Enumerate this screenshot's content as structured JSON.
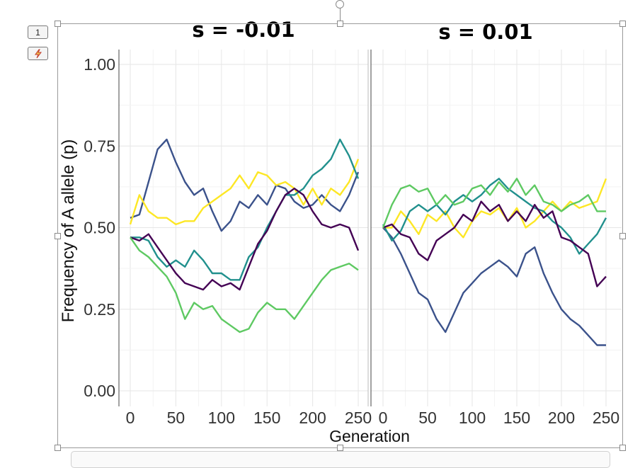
{
  "toolbar": {
    "slide_number": "1",
    "quick_action_icon": "lightning-icon"
  },
  "chart_data": [
    {
      "type": "line",
      "title": "s = -0.01",
      "xlabel": "Generation",
      "ylabel": "Frequency of A allele (p)",
      "xlim": [
        0,
        250
      ],
      "ylim": [
        0,
        1
      ],
      "x_ticks": [
        "0",
        "50",
        "100",
        "150",
        "200",
        "250"
      ],
      "y_ticks": [
        "0.00",
        "0.25",
        "0.50",
        "0.75",
        "1.00"
      ],
      "grid": true,
      "legend": "none",
      "series": [
        {
          "color": "#3b528b",
          "x": [
            0,
            10,
            20,
            30,
            40,
            50,
            60,
            70,
            80,
            90,
            100,
            110,
            120,
            130,
            140,
            150,
            160,
            170,
            180,
            190,
            200,
            210,
            220,
            230,
            240,
            250
          ],
          "y": [
            0.53,
            0.54,
            0.64,
            0.74,
            0.77,
            0.7,
            0.64,
            0.6,
            0.62,
            0.55,
            0.49,
            0.52,
            0.58,
            0.56,
            0.6,
            0.57,
            0.63,
            0.62,
            0.58,
            0.56,
            0.57,
            0.6,
            0.57,
            0.55,
            0.6,
            0.67
          ]
        },
        {
          "color": "#fde725",
          "x": [
            0,
            10,
            20,
            30,
            40,
            50,
            60,
            70,
            80,
            90,
            100,
            110,
            120,
            130,
            140,
            150,
            160,
            170,
            180,
            190,
            200,
            210,
            220,
            230,
            240,
            250
          ],
          "y": [
            0.51,
            0.6,
            0.55,
            0.53,
            0.53,
            0.51,
            0.52,
            0.52,
            0.56,
            0.58,
            0.6,
            0.62,
            0.66,
            0.62,
            0.67,
            0.66,
            0.63,
            0.64,
            0.62,
            0.57,
            0.62,
            0.57,
            0.62,
            0.6,
            0.64,
            0.71
          ]
        },
        {
          "color": "#21908d",
          "x": [
            0,
            10,
            20,
            30,
            40,
            50,
            60,
            70,
            80,
            90,
            100,
            110,
            120,
            130,
            140,
            150,
            160,
            170,
            180,
            190,
            200,
            210,
            220,
            230,
            240,
            250
          ],
          "y": [
            0.47,
            0.47,
            0.46,
            0.41,
            0.38,
            0.4,
            0.38,
            0.43,
            0.4,
            0.36,
            0.36,
            0.34,
            0.34,
            0.41,
            0.44,
            0.5,
            0.55,
            0.6,
            0.6,
            0.62,
            0.66,
            0.68,
            0.71,
            0.77,
            0.72,
            0.65
          ]
        },
        {
          "color": "#440154",
          "x": [
            0,
            10,
            20,
            30,
            40,
            50,
            60,
            70,
            80,
            90,
            100,
            110,
            120,
            130,
            140,
            150,
            160,
            170,
            180,
            190,
            200,
            210,
            220,
            230,
            240,
            250
          ],
          "y": [
            0.47,
            0.46,
            0.48,
            0.44,
            0.4,
            0.36,
            0.33,
            0.32,
            0.31,
            0.34,
            0.32,
            0.33,
            0.31,
            0.38,
            0.45,
            0.49,
            0.55,
            0.6,
            0.62,
            0.6,
            0.55,
            0.51,
            0.5,
            0.51,
            0.5,
            0.43
          ]
        },
        {
          "color": "#5ec962",
          "x": [
            0,
            10,
            20,
            30,
            40,
            50,
            60,
            70,
            80,
            90,
            100,
            110,
            120,
            130,
            140,
            150,
            160,
            170,
            180,
            190,
            200,
            210,
            220,
            230,
            240,
            250
          ],
          "y": [
            0.47,
            0.43,
            0.41,
            0.38,
            0.35,
            0.3,
            0.22,
            0.27,
            0.25,
            0.26,
            0.22,
            0.2,
            0.18,
            0.19,
            0.24,
            0.27,
            0.25,
            0.25,
            0.22,
            0.26,
            0.3,
            0.34,
            0.37,
            0.38,
            0.39,
            0.37
          ]
        }
      ]
    },
    {
      "type": "line",
      "title": "s = 0.01",
      "xlabel": "Generation",
      "ylabel": "Frequency of A allele (p)",
      "xlim": [
        0,
        250
      ],
      "ylim": [
        0,
        1
      ],
      "x_ticks": [
        "0",
        "50",
        "100",
        "150",
        "200",
        "250"
      ],
      "y_ticks": [
        "0.00",
        "0.25",
        "0.50",
        "0.75",
        "1.00"
      ],
      "grid": true,
      "legend": "none",
      "series": [
        {
          "color": "#3b528b",
          "x": [
            0,
            10,
            20,
            30,
            40,
            50,
            60,
            70,
            80,
            90,
            100,
            110,
            120,
            130,
            140,
            150,
            160,
            170,
            180,
            190,
            200,
            210,
            220,
            230,
            240,
            250
          ],
          "y": [
            0.5,
            0.47,
            0.42,
            0.36,
            0.3,
            0.28,
            0.22,
            0.18,
            0.24,
            0.3,
            0.33,
            0.36,
            0.38,
            0.4,
            0.38,
            0.35,
            0.42,
            0.44,
            0.36,
            0.3,
            0.25,
            0.22,
            0.2,
            0.17,
            0.14,
            0.14
          ]
        },
        {
          "color": "#fde725",
          "x": [
            0,
            10,
            20,
            30,
            40,
            50,
            60,
            70,
            80,
            90,
            100,
            110,
            120,
            130,
            140,
            150,
            160,
            170,
            180,
            190,
            200,
            210,
            220,
            230,
            240,
            250
          ],
          "y": [
            0.5,
            0.5,
            0.55,
            0.52,
            0.48,
            0.54,
            0.52,
            0.55,
            0.5,
            0.47,
            0.52,
            0.55,
            0.54,
            0.56,
            0.52,
            0.56,
            0.5,
            0.52,
            0.55,
            0.58,
            0.55,
            0.58,
            0.56,
            0.57,
            0.58,
            0.65
          ]
        },
        {
          "color": "#21908d",
          "x": [
            0,
            10,
            20,
            30,
            40,
            50,
            60,
            70,
            80,
            90,
            100,
            110,
            120,
            130,
            140,
            150,
            160,
            170,
            180,
            190,
            200,
            210,
            220,
            230,
            240,
            250
          ],
          "y": [
            0.51,
            0.46,
            0.49,
            0.55,
            0.57,
            0.55,
            0.57,
            0.54,
            0.58,
            0.6,
            0.58,
            0.6,
            0.63,
            0.65,
            0.62,
            0.6,
            0.58,
            0.56,
            0.55,
            0.52,
            0.5,
            0.47,
            0.42,
            0.45,
            0.48,
            0.53
          ]
        },
        {
          "color": "#440154",
          "x": [
            0,
            10,
            20,
            30,
            40,
            50,
            60,
            70,
            80,
            90,
            100,
            110,
            120,
            130,
            140,
            150,
            160,
            170,
            180,
            190,
            200,
            210,
            220,
            230,
            240,
            250
          ],
          "y": [
            0.5,
            0.51,
            0.48,
            0.47,
            0.42,
            0.4,
            0.46,
            0.48,
            0.5,
            0.54,
            0.52,
            0.58,
            0.55,
            0.57,
            0.52,
            0.55,
            0.52,
            0.57,
            0.53,
            0.55,
            0.47,
            0.46,
            0.44,
            0.42,
            0.32,
            0.35
          ]
        },
        {
          "color": "#5ec962",
          "x": [
            0,
            10,
            20,
            30,
            40,
            50,
            60,
            70,
            80,
            90,
            100,
            110,
            120,
            130,
            140,
            150,
            160,
            170,
            180,
            190,
            200,
            210,
            220,
            230,
            240,
            250
          ],
          "y": [
            0.5,
            0.57,
            0.62,
            0.63,
            0.61,
            0.62,
            0.57,
            0.6,
            0.57,
            0.58,
            0.62,
            0.63,
            0.6,
            0.64,
            0.61,
            0.65,
            0.6,
            0.63,
            0.58,
            0.57,
            0.55,
            0.57,
            0.58,
            0.6,
            0.55,
            0.55
          ]
        }
      ]
    }
  ]
}
